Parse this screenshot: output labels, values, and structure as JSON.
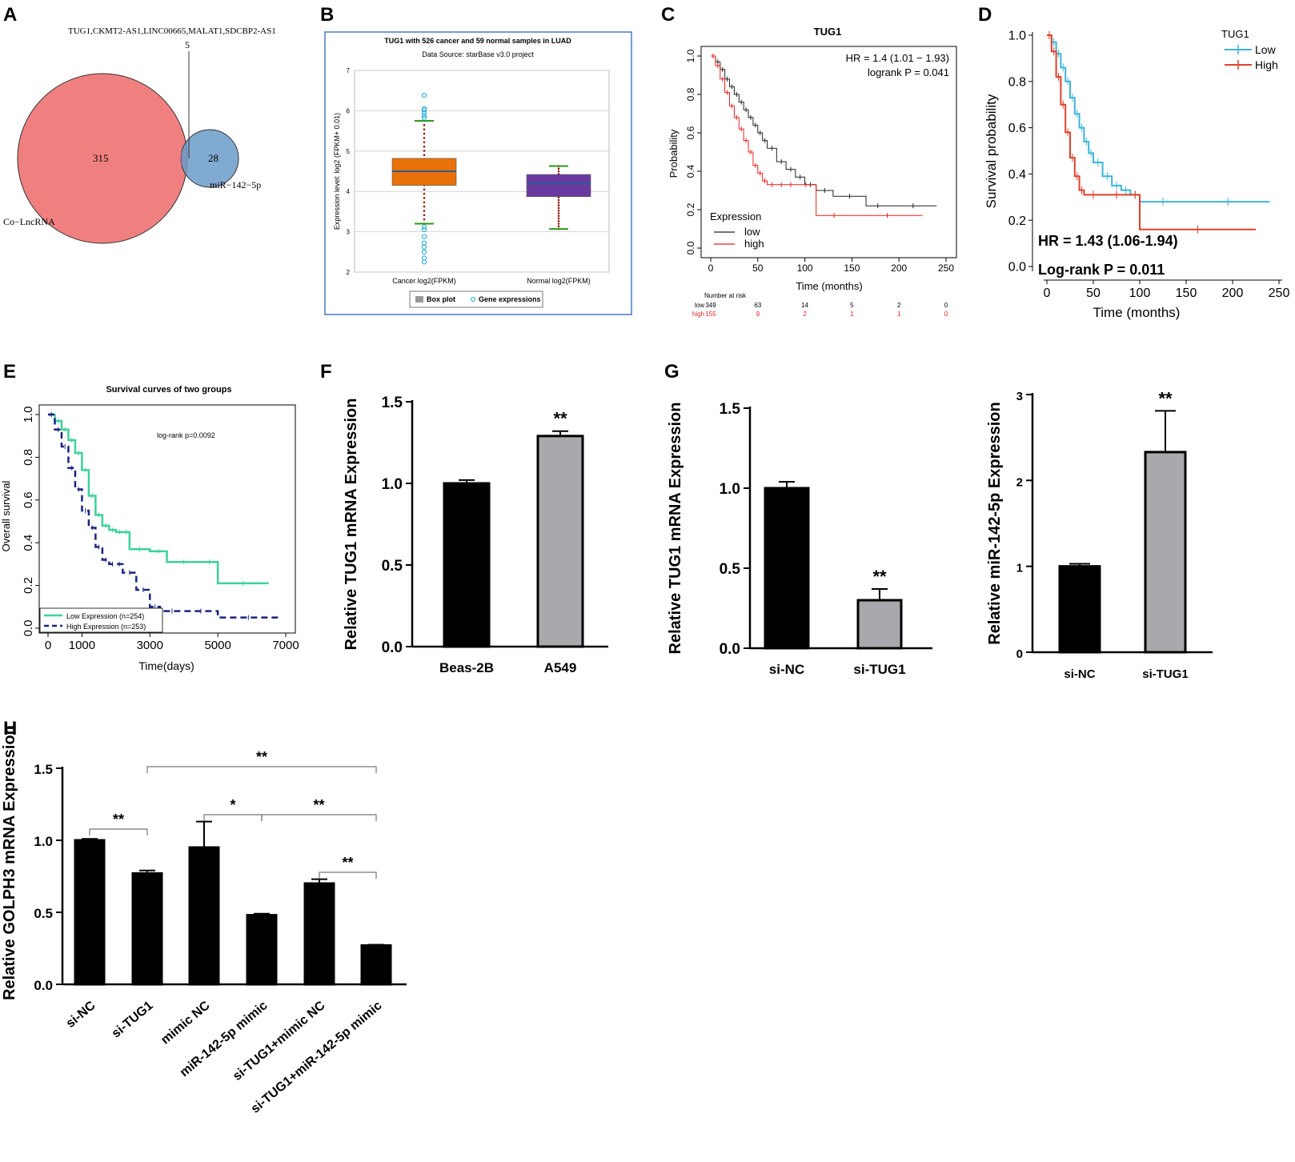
{
  "panels": {
    "A": {
      "label": "A",
      "venn": {
        "left_set": "Co−LncRNA",
        "right_set": "miR−142−5p",
        "left_only": "315",
        "right_only": "28",
        "overlap": "5",
        "overlap_genes": "TUG1,CKMT2-AS1,LINC00665,MALAT1,SDCBP2-AS1",
        "left_color": "#f08080",
        "right_color": "#6b9bc8"
      }
    },
    "B": {
      "label": "B",
      "title": "TUG1 with 526 cancer and 59 normal samples in LUAD",
      "subtitle": "Data Source: starBase v3.0 project",
      "ylabel": "Expression level: log2 (FPKM+ 0.01)",
      "legend": [
        "Box plot",
        "Gene expressions"
      ],
      "yticks": [
        "2",
        "3",
        "4",
        "5",
        "6",
        "7"
      ],
      "frame_color": "#4a78c2"
    },
    "C": {
      "label": "C",
      "title": "TUG1",
      "hr_text": "HR = 1.4 (1.01 − 1.93)",
      "p_text": "logrank P = 0.041",
      "xlabel": "Time (months)",
      "ylabel": "Probability",
      "legend_title": "Expression",
      "legend": [
        "low",
        "high"
      ],
      "yticks": [
        "0.0",
        "0.2",
        "0.4",
        "0.6",
        "0.8",
        "1.0"
      ],
      "xticks": [
        "0",
        "50",
        "100",
        "150",
        "200",
        "250"
      ],
      "risk_title": "Number at risk",
      "risk_rows": [
        {
          "name": "low",
          "values": [
            "349",
            "63",
            "14",
            "5",
            "2",
            "0"
          ]
        },
        {
          "name": "high",
          "values": [
            "155",
            "9",
            "2",
            "1",
            "1",
            "0"
          ]
        }
      ]
    },
    "D": {
      "label": "D",
      "ylabel": "Survival probability",
      "xlabel": "Time (months)",
      "legend_title": "TUG1",
      "legend": [
        "Low",
        "High"
      ],
      "hr_text": "HR = 1.43 (1.06-1.94)",
      "p_text": "Log-rank P = 0.011",
      "yticks": [
        "0.0",
        "0.2",
        "0.4",
        "0.6",
        "0.8",
        "1.0"
      ],
      "xticks": [
        "0",
        "50",
        "100",
        "150",
        "200",
        "250"
      ]
    },
    "E": {
      "label": "E",
      "title": "Survival curves of two groups",
      "p_text": "log-rank p=0.0092",
      "ylabel": "Overall survival",
      "xlabel": "Time(days)",
      "legend": [
        "Low Expression (n=254)",
        "High Expression (n=253)"
      ],
      "yticks": [
        "0.0",
        "0.2",
        "0.4",
        "0.6",
        "0.8",
        "1.0"
      ],
      "xticks": [
        "0",
        "1000",
        "3000",
        "5000",
        "7000"
      ]
    },
    "F": {
      "label": "F",
      "ylabel": "Relative TUG1 mRNA Expression",
      "yticks": [
        "0.0",
        "0.5",
        "1.0",
        "1.5"
      ],
      "sig": "**"
    },
    "G": {
      "label": "G",
      "left_ylabel": "Relative TUG1 mRNA Expression",
      "left_yticks": [
        "0.0",
        "0.5",
        "1.0",
        "1.5"
      ],
      "right_ylabel": "Relative miR-142-5p Expression",
      "right_yticks": [
        "0",
        "1",
        "2",
        "3"
      ],
      "sig": "**"
    },
    "H": {
      "label": "H",
      "ylabel": "Relative GOLPH3 mRNA Expression",
      "yticks": [
        "0.0",
        "0.5",
        "1.0",
        "1.5"
      ],
      "brackets": [
        "**",
        "**",
        "*",
        "**",
        "**"
      ]
    }
  },
  "chart_data": [
    {
      "panel": "B",
      "type": "box",
      "title": "TUG1 with 526 cancer and 59 normal samples in LUAD",
      "categories": [
        "Cancer log2(FPKM)",
        "Normal log2(FPKM)"
      ],
      "boxes": [
        {
          "name": "Cancer log2(FPKM)",
          "q1": 4.15,
          "median": 4.5,
          "q3": 4.82,
          "whisker_low": 3.2,
          "whisker_high": 5.75,
          "outliers": [
            2.25,
            2.35,
            2.5,
            2.62,
            2.72,
            2.88,
            3.05,
            3.12,
            5.82,
            5.88,
            5.95,
            6.02,
            6.05,
            6.38
          ]
        },
        {
          "name": "Normal log2(FPKM)",
          "q1": 3.87,
          "median": 4.2,
          "q3": 4.42,
          "whisker_low": 3.07,
          "whisker_high": 4.63,
          "outliers": []
        }
      ],
      "colors": [
        "#e8710a",
        "#6a3aa0"
      ],
      "ylim": [
        2,
        7
      ]
    },
    {
      "panel": "C",
      "type": "line",
      "title": "TUG1",
      "xlabel": "Time (months)",
      "ylabel": "Probability",
      "xlim": [
        0,
        250
      ],
      "ylim": [
        0,
        1
      ],
      "series": [
        {
          "name": "low",
          "color": "#222222",
          "x": [
            0,
            5,
            10,
            15,
            20,
            25,
            30,
            35,
            40,
            45,
            50,
            55,
            60,
            70,
            80,
            90,
            100,
            112,
            130,
            165,
            190,
            240
          ],
          "y": [
            1.0,
            0.97,
            0.93,
            0.88,
            0.84,
            0.8,
            0.76,
            0.72,
            0.68,
            0.64,
            0.6,
            0.56,
            0.52,
            0.45,
            0.41,
            0.37,
            0.33,
            0.3,
            0.27,
            0.22,
            0.22,
            0.22
          ]
        },
        {
          "name": "high",
          "color": "#e82020",
          "x": [
            0,
            5,
            10,
            15,
            20,
            25,
            30,
            35,
            40,
            45,
            50,
            55,
            60,
            70,
            80,
            90,
            112,
            150,
            225
          ],
          "y": [
            1.0,
            0.95,
            0.88,
            0.81,
            0.74,
            0.68,
            0.62,
            0.56,
            0.5,
            0.43,
            0.39,
            0.35,
            0.33,
            0.33,
            0.33,
            0.33,
            0.17,
            0.17,
            0.17
          ]
        }
      ]
    },
    {
      "panel": "D",
      "type": "line",
      "xlabel": "Time (months)",
      "ylabel": "Survival probability",
      "xlim": [
        0,
        250
      ],
      "ylim": [
        0,
        1
      ],
      "series": [
        {
          "name": "Low",
          "color": "#3cb4d8",
          "x": [
            0,
            5,
            10,
            15,
            20,
            25,
            30,
            35,
            40,
            45,
            50,
            60,
            70,
            80,
            90,
            100,
            150,
            240
          ],
          "y": [
            1.0,
            0.97,
            0.92,
            0.86,
            0.8,
            0.73,
            0.66,
            0.6,
            0.54,
            0.49,
            0.45,
            0.39,
            0.35,
            0.33,
            0.31,
            0.28,
            0.28,
            0.28
          ]
        },
        {
          "name": "High",
          "color": "#e0402a",
          "x": [
            0,
            5,
            10,
            15,
            20,
            25,
            30,
            35,
            40,
            60,
            90,
            100,
            225
          ],
          "y": [
            1.0,
            0.93,
            0.82,
            0.7,
            0.58,
            0.47,
            0.39,
            0.33,
            0.31,
            0.31,
            0.31,
            0.16,
            0.16
          ]
        }
      ]
    },
    {
      "panel": "E",
      "type": "line",
      "title": "Survival curves of two groups",
      "xlabel": "Time(days)",
      "ylabel": "Overall survival",
      "xlim": [
        0,
        7000
      ],
      "ylim": [
        0,
        1
      ],
      "series": [
        {
          "name": "Low Expression (n=254)",
          "color": "#3dd19a",
          "x": [
            0,
            200,
            400,
            600,
            800,
            1000,
            1200,
            1400,
            1600,
            1800,
            2000,
            2200,
            2400,
            3000,
            3500,
            4500,
            5000,
            6500
          ],
          "y": [
            1.0,
            0.97,
            0.93,
            0.88,
            0.82,
            0.74,
            0.62,
            0.53,
            0.48,
            0.46,
            0.45,
            0.45,
            0.37,
            0.36,
            0.31,
            0.31,
            0.21,
            0.21
          ]
        },
        {
          "name": "High Expression (n=253)",
          "color": "#1a237e",
          "x": [
            0,
            200,
            400,
            600,
            800,
            1000,
            1200,
            1400,
            1600,
            1800,
            2000,
            2200,
            2600,
            3000,
            3300,
            4000,
            5000,
            6800
          ],
          "y": [
            1.0,
            0.93,
            0.85,
            0.75,
            0.65,
            0.55,
            0.47,
            0.38,
            0.32,
            0.3,
            0.3,
            0.26,
            0.18,
            0.1,
            0.08,
            0.08,
            0.05,
            0.05
          ]
        }
      ]
    },
    {
      "panel": "F",
      "type": "bar",
      "ylabel": "Relative TUG1 mRNA Expression",
      "categories": [
        "Beas-2B",
        "A549"
      ],
      "values": [
        1.0,
        1.29
      ],
      "errors": [
        0.02,
        0.03
      ],
      "colors": [
        "#000000",
        "#a9a9ad"
      ],
      "ylim": [
        0,
        1.5
      ]
    },
    {
      "panel": "G-left",
      "type": "bar",
      "ylabel": "Relative TUG1 mRNA Expression",
      "categories": [
        "si-NC",
        "si-TUG1"
      ],
      "values": [
        1.0,
        0.3
      ],
      "errors": [
        0.04,
        0.07
      ],
      "colors": [
        "#000000",
        "#a9a9ad"
      ],
      "ylim": [
        0,
        1.5
      ]
    },
    {
      "panel": "G-right",
      "type": "bar",
      "ylabel": "Relative miR-142-5p Expression",
      "categories": [
        "si-NC",
        "si-TUG1"
      ],
      "values": [
        1.0,
        2.33
      ],
      "errors": [
        0.03,
        0.48
      ],
      "colors": [
        "#000000",
        "#a9a9ad"
      ],
      "ylim": [
        0,
        3
      ]
    },
    {
      "panel": "H",
      "type": "bar",
      "ylabel": "Relative GOLPH3 mRNA Expression",
      "categories": [
        "si-NC",
        "si-TUG1",
        "mimic NC",
        "miR-142-5p mimic",
        "si-TUG1+mimic NC",
        "si-TUG1+miR-142-5p mimic"
      ],
      "values": [
        1.0,
        0.77,
        0.95,
        0.48,
        0.7,
        0.27
      ],
      "errors": [
        0.01,
        0.02,
        0.18,
        0.01,
        0.03,
        0.005
      ],
      "colors": [
        "#000000"
      ],
      "ylim": [
        0,
        1.5
      ]
    }
  ]
}
